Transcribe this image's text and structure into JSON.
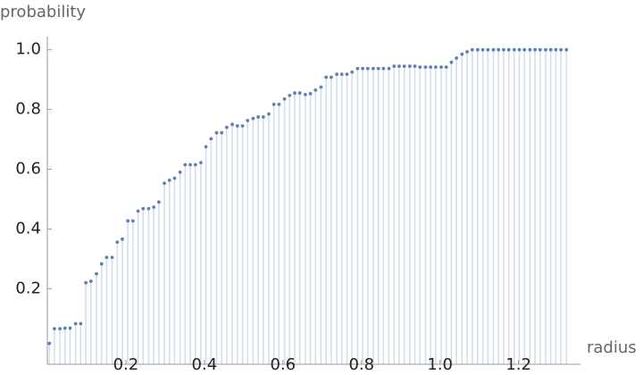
{
  "chart_data": {
    "type": "discrete",
    "x_label": "radius",
    "y_label": "probability",
    "x": [
      0.005,
      0.018,
      0.032,
      0.045,
      0.058,
      0.072,
      0.085,
      0.098,
      0.111,
      0.125,
      0.138,
      0.151,
      0.165,
      0.178,
      0.191,
      0.205,
      0.218,
      0.231,
      0.244,
      0.258,
      0.271,
      0.284,
      0.298,
      0.311,
      0.324,
      0.338,
      0.351,
      0.364,
      0.377,
      0.391,
      0.404,
      0.417,
      0.431,
      0.444,
      0.457,
      0.471,
      0.484,
      0.497,
      0.51,
      0.524,
      0.537,
      0.55,
      0.564,
      0.577,
      0.59,
      0.604,
      0.617,
      0.63,
      0.643,
      0.657,
      0.67,
      0.683,
      0.697,
      0.71,
      0.723,
      0.737,
      0.75,
      0.763,
      0.776,
      0.79,
      0.803,
      0.816,
      0.83,
      0.843,
      0.856,
      0.87,
      0.883,
      0.896,
      0.909,
      0.923,
      0.936,
      0.949,
      0.963,
      0.976,
      0.989,
      1.003,
      1.016,
      1.029,
      1.042,
      1.056,
      1.069,
      1.082,
      1.096,
      1.109,
      1.122,
      1.136,
      1.149,
      1.162,
      1.175,
      1.189,
      1.202,
      1.215,
      1.229,
      1.242,
      1.255,
      1.269,
      1.282,
      1.295,
      1.308,
      1.322
    ],
    "values": [
      0.017,
      0.066,
      0.066,
      0.068,
      0.068,
      0.083,
      0.083,
      0.22,
      0.225,
      0.25,
      0.283,
      0.305,
      0.305,
      0.356,
      0.366,
      0.427,
      0.427,
      0.46,
      0.468,
      0.468,
      0.473,
      0.49,
      0.553,
      0.563,
      0.57,
      0.59,
      0.615,
      0.615,
      0.615,
      0.622,
      0.675,
      0.702,
      0.722,
      0.722,
      0.74,
      0.75,
      0.745,
      0.745,
      0.763,
      0.77,
      0.775,
      0.775,
      0.785,
      0.817,
      0.817,
      0.835,
      0.847,
      0.855,
      0.855,
      0.85,
      0.853,
      0.865,
      0.875,
      0.908,
      0.908,
      0.918,
      0.918,
      0.918,
      0.925,
      0.937,
      0.937,
      0.937,
      0.937,
      0.937,
      0.937,
      0.937,
      0.945,
      0.945,
      0.945,
      0.945,
      0.945,
      0.942,
      0.942,
      0.942,
      0.942,
      0.942,
      0.942,
      0.958,
      0.972,
      0.985,
      0.993,
      1,
      1,
      1,
      1,
      1,
      1,
      1,
      1,
      1,
      1,
      1,
      1,
      1,
      1,
      1,
      1,
      1,
      1,
      1
    ],
    "color": "#5e81b5",
    "fill_color": "#d4dfeb",
    "xlim": [
      0,
      1.335
    ],
    "ylim": [
      -0.053,
      1.02
    ],
    "xticks": [
      0.2,
      0.4,
      0.6,
      0.8,
      {
        "value": 1,
        "label": "1.0"
      },
      1.2
    ],
    "yticks": [
      0.2,
      0.4,
      0.6,
      0.8,
      {
        "value": 1,
        "label": "1.0"
      }
    ]
  }
}
